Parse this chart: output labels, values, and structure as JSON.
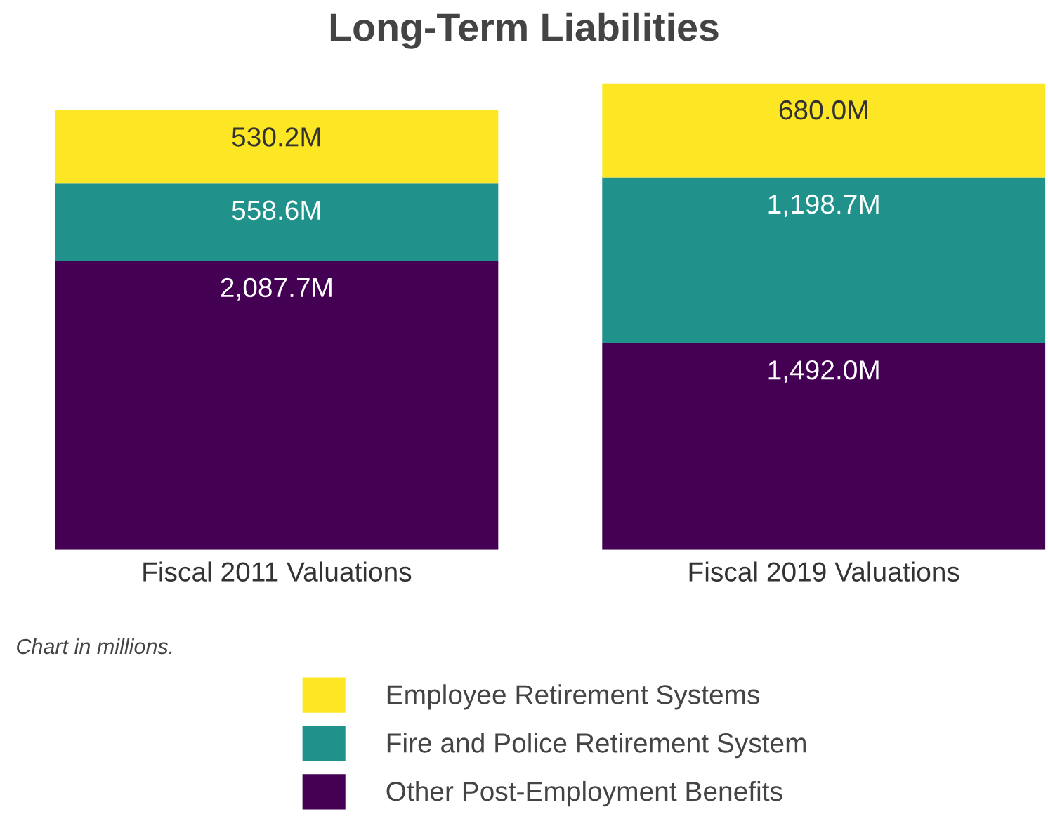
{
  "chart_data": {
    "type": "bar",
    "stacked": true,
    "title": "Long-Term Liabilities",
    "categories": [
      "Fiscal 2011 Valuations",
      "Fiscal 2019 Valuations"
    ],
    "series": [
      {
        "name": "Other Post-Employment Benefits",
        "color": "#440154",
        "values": [
          2087.7,
          1492.0
        ],
        "value_labels": [
          "2,087.7M",
          "1,492.0M"
        ]
      },
      {
        "name": "Fire and Police Retirement System",
        "color": "#21918c",
        "values": [
          558.6,
          1198.7
        ],
        "value_labels": [
          "558.6M",
          "1,198.7M"
        ]
      },
      {
        "name": "Employee Retirement Systems",
        "color": "#fde725",
        "values": [
          530.2,
          680.0
        ],
        "value_labels": [
          "530.2M",
          "680.0M"
        ]
      }
    ],
    "annotations": [
      "Chart in millions."
    ],
    "legend": "bottom",
    "grid": false
  }
}
